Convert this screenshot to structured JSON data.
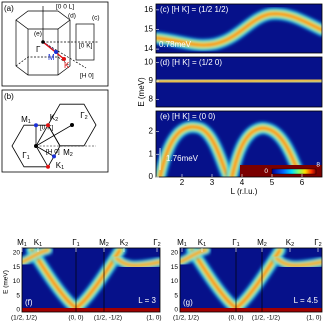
{
  "panel_a": {
    "label": "(a)",
    "axis_l": "[0 0 L]",
    "cut_d": "(d)",
    "cut_e": "(e)",
    "cut_c": "(c)",
    "gamma": "Γ",
    "m": "M",
    "k": "K",
    "axis_k": "[0 K]",
    "axis_h": "[H 0]"
  },
  "panel_b": {
    "label": "(b)",
    "m1": {
      "letter": "M",
      "sub": "1"
    },
    "k2": {
      "letter": "K",
      "sub": "2"
    },
    "gamma2": {
      "letter": "Γ",
      "sub": "2"
    },
    "gamma1": {
      "letter": "Γ",
      "sub": "1"
    },
    "k1": {
      "letter": "K",
      "sub": "1"
    },
    "m2": {
      "letter": "M",
      "sub": "2"
    },
    "axis_k": "[0 K]",
    "axis_h": "[H 0]"
  },
  "panel_c": {
    "title": "(c) [H K] = (1/2 1/2)",
    "annotation": "0.78meV",
    "yticks": [
      14,
      15,
      16
    ]
  },
  "panel_d": {
    "title": "(d) [H K] = (1/2 0)",
    "yticks": [
      8,
      9,
      10
    ]
  },
  "panel_e": {
    "title": "(e) [H K] = (0 0)",
    "annotation": "1.76meV",
    "yticks": [
      0,
      1,
      2
    ],
    "colorbar_ticks": [
      0,
      8
    ]
  },
  "right_axes": {
    "ylabel": "E (meV)",
    "xlabel": "L (r.l.u.)",
    "xticks": [
      2,
      3,
      4,
      5,
      6
    ]
  },
  "panel_f": {
    "label": "(f)",
    "annotation": "L = 3",
    "ylabel": "E (meV)",
    "yticks": [
      0,
      5,
      10,
      15,
      20
    ],
    "top_labels": [
      {
        "letter": "M",
        "sub": "1"
      },
      {
        "letter": "K",
        "sub": "1"
      },
      {
        "letter": "Γ",
        "sub": "1"
      },
      {
        "letter": "M",
        "sub": "2"
      },
      {
        "letter": "K",
        "sub": "2"
      },
      {
        "letter": "Γ",
        "sub": "2"
      }
    ],
    "bottom_labels": [
      "(1/2, 1/2)",
      "(0, 0)",
      "(1/2, -1/2)",
      "(1, 0)"
    ]
  },
  "panel_g": {
    "label": "(g)",
    "annotation": "L = 4.5",
    "yticks": [
      0,
      5,
      10,
      15,
      20
    ],
    "top_labels": [
      {
        "letter": "M",
        "sub": "1"
      },
      {
        "letter": "K",
        "sub": "1"
      },
      {
        "letter": "Γ",
        "sub": "1"
      },
      {
        "letter": "M",
        "sub": "2"
      },
      {
        "letter": "K",
        "sub": "2"
      },
      {
        "letter": "Γ",
        "sub": "2"
      }
    ],
    "bottom_labels": [
      "(1/2, 1/2)",
      "(0, 0)",
      "(1/2, -1/2)",
      "(1, 0)"
    ]
  }
}
